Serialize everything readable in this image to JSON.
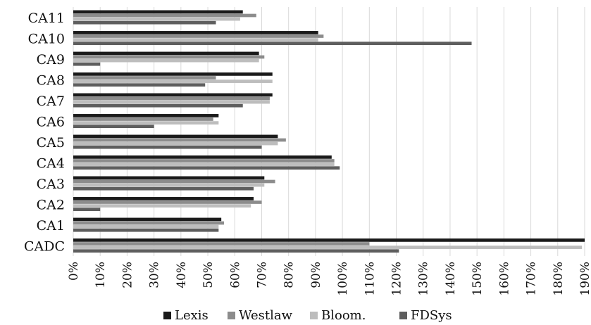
{
  "chart_data": {
    "type": "bar",
    "orientation": "horizontal",
    "title": "",
    "xlabel": "",
    "ylabel": "",
    "xlim": [
      0,
      190
    ],
    "x_tick_step": 10,
    "x_tick_suffix": "%",
    "grid": "vertical",
    "legend_position": "bottom",
    "categories": [
      "CA11",
      "CA10",
      "CA9",
      "CA8",
      "CA7",
      "CA6",
      "CA5",
      "CA4",
      "CA3",
      "CA2",
      "CA1",
      "CADC"
    ],
    "series": [
      {
        "name": "Lexis",
        "color": "#1a1a1a",
        "values": [
          63,
          91,
          69,
          74,
          74,
          54,
          76,
          96,
          71,
          67,
          55,
          191
        ]
      },
      {
        "name": "Westlaw",
        "color": "#8c8c8c",
        "values": [
          68,
          93,
          71,
          53,
          73,
          52,
          79,
          97,
          75,
          70,
          56,
          110
        ]
      },
      {
        "name": "Bloom.",
        "color": "#bdbdbd",
        "values": [
          62,
          91,
          69,
          74,
          73,
          54,
          76,
          97,
          71,
          66,
          54,
          189
        ]
      },
      {
        "name": "FDSys",
        "color": "#5e5e5e",
        "values": [
          53,
          148,
          10,
          49,
          63,
          30,
          70,
          99,
          67,
          10,
          54,
          121
        ]
      }
    ]
  }
}
